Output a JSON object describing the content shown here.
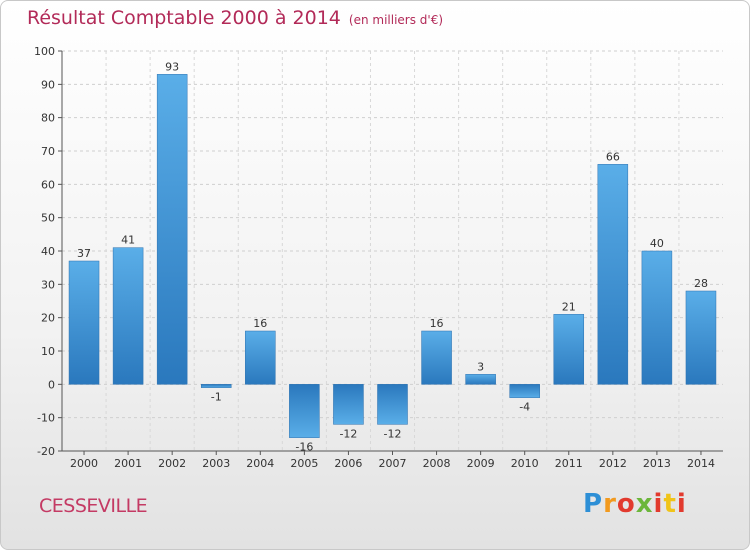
{
  "title": "Résultat Comptable 2000 à 2014",
  "subtitle": "(en milliers d'€)",
  "commune": "CESSEVILLE",
  "logo": {
    "p1": "P",
    "p2": "r",
    "p3": "o",
    "p4": "x",
    "p5": "i",
    "p6": "t",
    "p7": "i"
  },
  "colors": {
    "bar": "#3b8fd4",
    "title": "#b22a58"
  },
  "chart_data": {
    "type": "bar",
    "title": "Résultat Comptable 2000 à 2014",
    "subtitle": "(en milliers d'€)",
    "categories": [
      "2000",
      "2001",
      "2002",
      "2003",
      "2004",
      "2005",
      "2006",
      "2007",
      "2008",
      "2009",
      "2010",
      "2011",
      "2012",
      "2013",
      "2014"
    ],
    "values": [
      37,
      41,
      93,
      -1,
      16,
      -16,
      -12,
      -12,
      16,
      3,
      -4,
      21,
      66,
      40,
      28
    ],
    "value_labels": [
      "37",
      "41",
      "93",
      "-1",
      "16",
      "-16",
      "-12",
      "-12",
      "16",
      "3",
      "-4",
      "21",
      "66",
      "40",
      "28"
    ],
    "yticks": [
      100,
      90,
      80,
      70,
      60,
      50,
      40,
      30,
      20,
      10,
      0,
      -10,
      -20
    ],
    "ylim": [
      -20,
      100
    ],
    "grid": true,
    "xlabel": "",
    "ylabel": ""
  }
}
